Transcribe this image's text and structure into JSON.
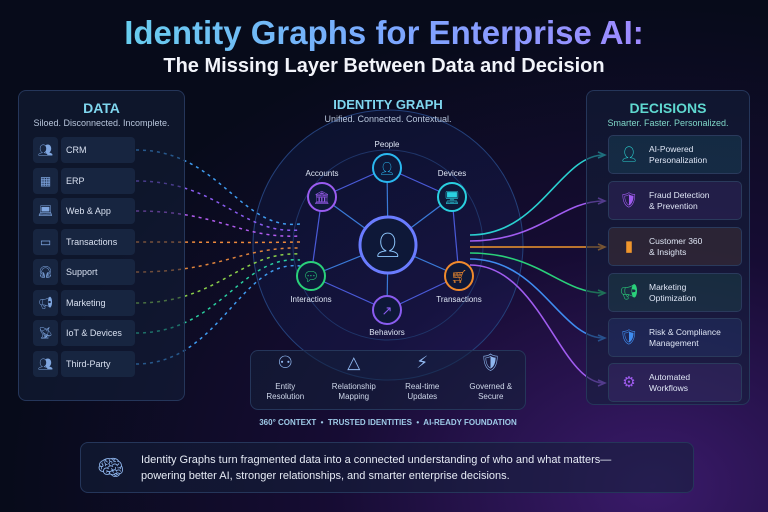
{
  "title": "Identity Graphs for Enterprise AI:",
  "subtitle": "The Missing Layer Between Data and Decision",
  "data_panel": {
    "heading": "DATA",
    "tagline": "Siloed. Disconnected. Incomplete.",
    "items": [
      {
        "label": "CRM",
        "icon": "users-icon",
        "color": "#3f9cf0"
      },
      {
        "label": "ERP",
        "icon": "building-icon",
        "color": "#8a5cf0"
      },
      {
        "label": "Web & App",
        "icon": "laptop-icon",
        "color": "#b35cf0"
      },
      {
        "label": "Transactions",
        "icon": "credit-card-icon",
        "color": "#f08a3c"
      },
      {
        "label": "Support",
        "icon": "headset-icon",
        "color": "#e0843c"
      },
      {
        "label": "Marketing",
        "icon": "megaphone-icon",
        "color": "#8ad04a"
      },
      {
        "label": "IoT & Devices",
        "icon": "antenna-icon",
        "color": "#2ad0a0"
      },
      {
        "label": "Third-Party",
        "icon": "partners-icon",
        "color": "#3f9cf0"
      }
    ]
  },
  "graph": {
    "heading": "IDENTITY GRAPH",
    "tagline": "Unified. Connected. Contextual.",
    "nodes": [
      {
        "label": "People",
        "icon": "person-icon",
        "color": "#2ab8f0"
      },
      {
        "label": "Accounts",
        "icon": "bank-icon",
        "color": "#9a5cf0"
      },
      {
        "label": "Devices",
        "icon": "monitor-icon",
        "color": "#2ad0e0"
      },
      {
        "label": "Interactions",
        "icon": "chat-icon",
        "color": "#2ad07a"
      },
      {
        "label": "Transactions",
        "icon": "cart-icon",
        "color": "#f08a2c"
      },
      {
        "label": "Behaviors",
        "icon": "trend-icon",
        "color": "#8a5cf0"
      }
    ],
    "features": [
      {
        "label": "Entity\nResolution",
        "icon": "entity-resolution-icon"
      },
      {
        "label": "Relationship\nMapping",
        "icon": "network-icon"
      },
      {
        "label": "Real-time\nUpdates",
        "icon": "lightning-icon"
      },
      {
        "label": "Governed &\nSecure",
        "icon": "shield-check-icon"
      }
    ],
    "tagline_bottom": "360° CONTEXT  •  TRUSTED IDENTITIES  •  AI-READY FOUNDATION"
  },
  "decisions_panel": {
    "heading": "DECISIONS",
    "tagline": "Smarter. Faster. Personalized.",
    "items": [
      {
        "line1": "AI-Powered",
        "line2": "Personalization",
        "icon": "person-icon",
        "color": "#2ad0d0"
      },
      {
        "line1": "Fraud Detection",
        "line2": "& Prevention",
        "icon": "shield-check-icon",
        "color": "#a05cf0"
      },
      {
        "line1": "Customer 360",
        "line2": "& Insights",
        "icon": "bar-chart-icon",
        "color": "#f0962c"
      },
      {
        "line1": "Marketing",
        "line2": "Optimization",
        "icon": "megaphone-icon",
        "color": "#2ad07a"
      },
      {
        "line1": "Risk & Compliance",
        "line2": "Management",
        "icon": "shield-check-icon",
        "color": "#3f8cf0"
      },
      {
        "line1": "Automated",
        "line2": "Workflows",
        "icon": "gear-icon",
        "color": "#a05cf0"
      }
    ]
  },
  "footer": {
    "line1": "Identity Graphs turn fragmented data into a connected understanding of who and what matters—",
    "line2": "powering better AI, stronger relationships, and smarter enterprise decisions.",
    "icon": "brain-icon"
  }
}
